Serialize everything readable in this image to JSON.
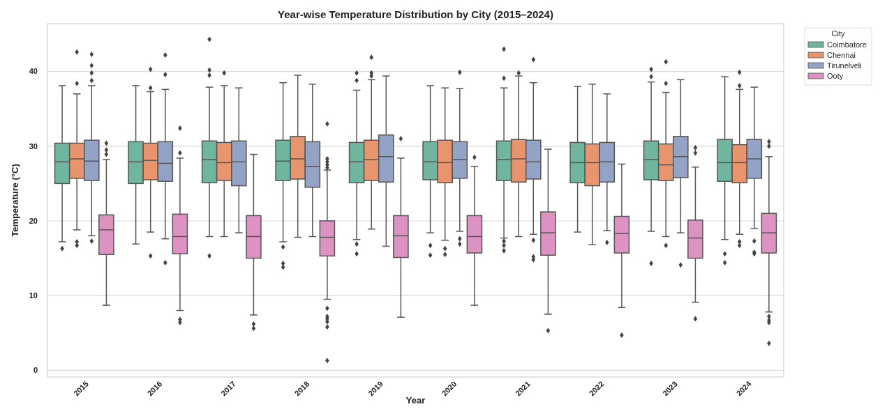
{
  "chart_data": {
    "type": "box",
    "title": "Year-wise Temperature Distribution by City (2015–2024)",
    "xlabel": "Year",
    "ylabel": "Temperature (°C)",
    "legend_title": "City",
    "legend": "top right",
    "grid": "y",
    "marker": "diamond",
    "categories": [
      "2015",
      "2016",
      "2017",
      "2018",
      "2019",
      "2020",
      "2021",
      "2022",
      "2023",
      "2024"
    ],
    "ylim": [
      -0.9,
      46.4
    ],
    "yticks": [
      0,
      10,
      20,
      30,
      40
    ],
    "series": [
      {
        "name": "Coimbatore",
        "color": "#70b59d",
        "boxes": [
          {
            "low": 17.2,
            "q1": 25.0,
            "median": 27.9,
            "q3": 30.4,
            "high": 38.1,
            "outliers": [
              16.3
            ]
          },
          {
            "low": 16.9,
            "q1": 25.0,
            "median": 27.9,
            "q3": 30.6,
            "high": 38.1
          },
          {
            "low": 17.9,
            "q1": 25.1,
            "median": 28.2,
            "q3": 30.7,
            "high": 37.9,
            "outliers": [
              44.3,
              40.2,
              39.5,
              15.3
            ]
          },
          {
            "low": 17.2,
            "q1": 25.4,
            "median": 28.0,
            "q3": 30.8,
            "high": 38.5,
            "outliers": [
              16.5,
              14.3,
              13.8
            ]
          },
          {
            "low": 17.5,
            "q1": 25.1,
            "median": 27.9,
            "q3": 30.5,
            "high": 37.5,
            "outliers": [
              39.8,
              38.8,
              16.9,
              15.6
            ]
          },
          {
            "low": 18.4,
            "q1": 25.5,
            "median": 27.9,
            "q3": 30.6,
            "high": 38.1,
            "outliers": [
              16.7,
              15.4
            ]
          },
          {
            "low": 17.7,
            "q1": 25.4,
            "median": 28.2,
            "q3": 30.7,
            "high": 37.8,
            "outliers": [
              43.0,
              39.1,
              17.3,
              16.7,
              16.0
            ]
          },
          {
            "low": 18.5,
            "q1": 25.1,
            "median": 27.8,
            "q3": 30.5,
            "high": 38.0
          },
          {
            "low": 18.6,
            "q1": 25.5,
            "median": 28.2,
            "q3": 30.7,
            "high": 38.6,
            "outliers": [
              40.3,
              39.3,
              14.3
            ]
          },
          {
            "low": 17.5,
            "q1": 25.3,
            "median": 27.8,
            "q3": 30.9,
            "high": 39.3,
            "outliers": [
              15.6,
              14.4
            ]
          }
        ]
      },
      {
        "name": "Chennai",
        "color": "#e8956e",
        "boxes": [
          {
            "low": 18.8,
            "q1": 25.7,
            "median": 28.3,
            "q3": 30.4,
            "high": 37.0,
            "outliers": [
              42.6,
              38.4,
              17.2,
              16.7
            ]
          },
          {
            "low": 18.5,
            "q1": 25.5,
            "median": 28.1,
            "q3": 30.4,
            "high": 37.3,
            "outliers": [
              40.3,
              37.8,
              15.3
            ]
          },
          {
            "low": 17.9,
            "q1": 25.4,
            "median": 27.8,
            "q3": 30.5,
            "high": 38.1,
            "outliers": [
              39.8
            ]
          },
          {
            "low": 17.8,
            "q1": 25.6,
            "median": 28.3,
            "q3": 31.3,
            "high": 39.5
          },
          {
            "low": 18.9,
            "q1": 25.4,
            "median": 28.2,
            "q3": 30.8,
            "high": 38.9,
            "outliers": [
              41.9,
              39.8,
              39.4
            ]
          },
          {
            "low": 17.4,
            "q1": 25.1,
            "median": 27.8,
            "q3": 30.8,
            "high": 37.8,
            "outliers": [
              16.3,
              15.5
            ]
          },
          {
            "low": 17.9,
            "q1": 25.2,
            "median": 28.3,
            "q3": 30.9,
            "high": 39.4,
            "outliers": [
              39.8
            ]
          },
          {
            "low": 16.8,
            "q1": 24.7,
            "median": 27.8,
            "q3": 30.3,
            "high": 38.3
          },
          {
            "low": 17.9,
            "q1": 25.4,
            "median": 27.5,
            "q3": 30.3,
            "high": 37.2,
            "outliers": [
              41.3,
              38.4,
              16.7
            ]
          },
          {
            "low": 18.2,
            "q1": 25.1,
            "median": 27.8,
            "q3": 30.2,
            "high": 37.6,
            "outliers": [
              39.9,
              38.1,
              17.2,
              16.7
            ]
          }
        ]
      },
      {
        "name": "Tirunelveli",
        "color": "#93a3c6",
        "boxes": [
          {
            "low": 18.0,
            "q1": 25.4,
            "median": 28.0,
            "q3": 30.8,
            "high": 38.1,
            "outliers": [
              42.3,
              40.8,
              39.8,
              38.8,
              17.3
            ]
          },
          {
            "low": 17.6,
            "q1": 25.3,
            "median": 27.7,
            "q3": 30.6,
            "high": 37.6,
            "outliers": [
              42.2,
              39.6,
              14.4
            ]
          },
          {
            "low": 18.4,
            "q1": 24.7,
            "median": 27.9,
            "q3": 30.7,
            "high": 37.8
          },
          {
            "low": 17.9,
            "q1": 24.5,
            "median": 27.3,
            "q3": 30.6,
            "high": 38.3
          },
          {
            "low": 16.6,
            "q1": 25.2,
            "median": 28.6,
            "q3": 31.5,
            "high": 39.4
          },
          {
            "low": 18.6,
            "q1": 25.7,
            "median": 28.2,
            "q3": 30.6,
            "high": 37.7,
            "outliers": [
              39.9,
              17.6,
              16.9
            ]
          },
          {
            "low": 18.2,
            "q1": 25.6,
            "median": 27.9,
            "q3": 30.8,
            "high": 38.5,
            "outliers": [
              41.6,
              17.4,
              15.2,
              14.8
            ]
          },
          {
            "low": 18.7,
            "q1": 25.2,
            "median": 27.9,
            "q3": 30.5,
            "high": 37.0,
            "outliers": [
              17.1
            ]
          },
          {
            "low": 18.4,
            "q1": 25.8,
            "median": 28.6,
            "q3": 31.3,
            "high": 38.9,
            "outliers": [
              14.1
            ]
          },
          {
            "low": 19.0,
            "q1": 25.7,
            "median": 28.3,
            "q3": 30.9,
            "high": 37.9,
            "outliers": [
              17.3,
              15.8,
              15.6
            ]
          }
        ]
      },
      {
        "name": "Ooty",
        "color": "#dc93c1",
        "boxes": [
          {
            "low": 8.7,
            "q1": 15.5,
            "median": 18.8,
            "q3": 20.8,
            "high": 28.2,
            "outliers": [
              30.4,
              29.5,
              28.9
            ]
          },
          {
            "low": 8.0,
            "q1": 15.6,
            "median": 17.9,
            "q3": 20.9,
            "high": 28.4,
            "outliers": [
              32.4,
              29.1,
              6.8,
              6.4
            ]
          },
          {
            "low": 7.4,
            "q1": 15.0,
            "median": 17.9,
            "q3": 20.7,
            "high": 28.9,
            "outliers": [
              6.2,
              5.6
            ]
          },
          {
            "low": 9.5,
            "q1": 15.3,
            "median": 17.8,
            "q3": 20.0,
            "high": 26.8,
            "outliers": [
              33.0,
              28.3,
              27.9,
              27.5,
              27.1,
              8.3,
              7.2,
              6.9,
              6.5,
              5.8,
              1.3
            ]
          },
          {
            "low": 7.1,
            "q1": 15.1,
            "median": 18.0,
            "q3": 20.7,
            "high": 28.4,
            "outliers": [
              31.0
            ]
          },
          {
            "low": 8.7,
            "q1": 15.7,
            "median": 17.9,
            "q3": 20.7,
            "high": 27.3,
            "outliers": [
              28.5
            ]
          },
          {
            "low": 7.5,
            "q1": 15.4,
            "median": 18.4,
            "q3": 21.2,
            "high": 29.6,
            "outliers": [
              5.3
            ]
          },
          {
            "low": 8.4,
            "q1": 15.7,
            "median": 18.3,
            "q3": 20.6,
            "high": 27.6,
            "outliers": [
              4.7
            ]
          },
          {
            "low": 9.1,
            "q1": 15.0,
            "median": 17.7,
            "q3": 20.1,
            "high": 27.2,
            "outliers": [
              29.8,
              29.1,
              6.9
            ]
          },
          {
            "low": 7.8,
            "q1": 15.7,
            "median": 18.4,
            "q3": 21.0,
            "high": 28.6,
            "outliers": [
              30.6,
              30.0,
              7.2,
              6.7,
              6.4,
              3.6
            ]
          }
        ]
      }
    ]
  }
}
